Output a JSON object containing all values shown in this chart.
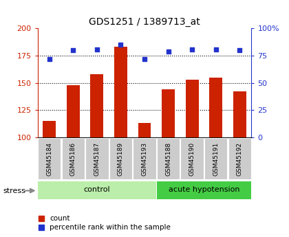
{
  "title": "GDS1251 / 1389713_at",
  "samples": [
    "GSM45184",
    "GSM45186",
    "GSM45187",
    "GSM45189",
    "GSM45193",
    "GSM45188",
    "GSM45190",
    "GSM45191",
    "GSM45192"
  ],
  "counts": [
    115,
    148,
    158,
    183,
    113,
    144,
    153,
    155,
    142
  ],
  "percentiles": [
    72,
    80,
    81,
    85,
    72,
    79,
    81,
    81,
    80
  ],
  "groups": [
    {
      "label": "control",
      "start": 0,
      "end": 5,
      "color": "#bbeeaa"
    },
    {
      "label": "acute hypotension",
      "start": 5,
      "end": 9,
      "color": "#44cc44"
    }
  ],
  "ylim_left": [
    100,
    200
  ],
  "ylim_right": [
    0,
    100
  ],
  "yticks_left": [
    100,
    125,
    150,
    175,
    200
  ],
  "yticks_right": [
    0,
    25,
    50,
    75,
    100
  ],
  "bar_color": "#cc2200",
  "dot_color": "#2233cc",
  "bar_width": 0.55,
  "stress_label": "stress",
  "legend_count": "count",
  "legend_percentile": "percentile rank within the sample",
  "sample_box_color": "#cccccc",
  "figsize": [
    4.2,
    3.45
  ],
  "dpi": 100
}
